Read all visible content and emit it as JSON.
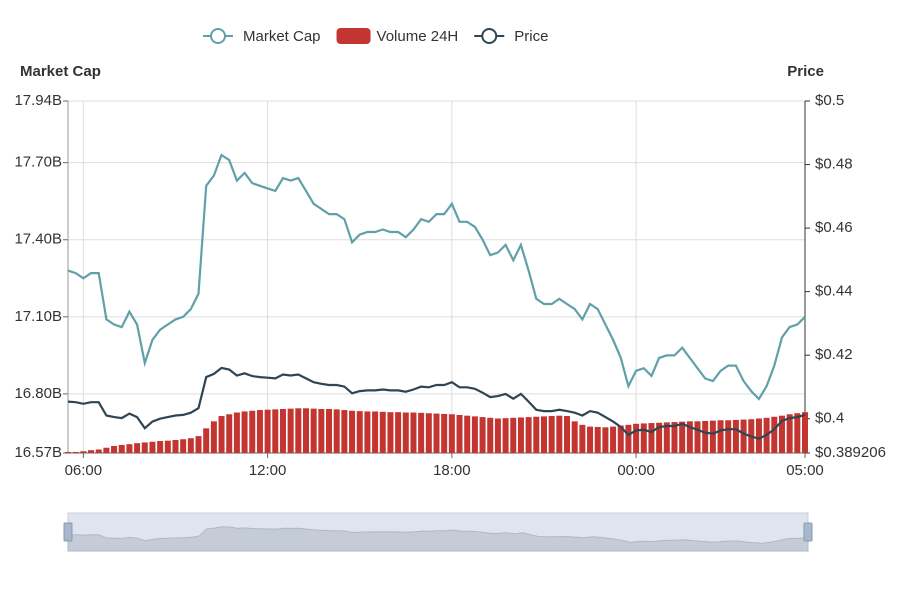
{
  "chart_data": {
    "type": "line",
    "y_label": "Market Cap",
    "y2_label": "Price",
    "legend": "top",
    "grid": true,
    "categories": [
      null,
      null,
      "06:00",
      null,
      null,
      null,
      null,
      null,
      null,
      null,
      null,
      null,
      null,
      null,
      null,
      null,
      null,
      null,
      null,
      null,
      null,
      null,
      null,
      null,
      null,
      null,
      "12:00",
      null,
      null,
      null,
      null,
      null,
      null,
      null,
      null,
      null,
      null,
      null,
      null,
      null,
      null,
      null,
      null,
      null,
      null,
      null,
      null,
      null,
      null,
      null,
      "18:00",
      null,
      null,
      null,
      null,
      null,
      null,
      null,
      null,
      null,
      null,
      null,
      null,
      null,
      null,
      null,
      null,
      null,
      null,
      null,
      null,
      null,
      null,
      null,
      "00:00",
      null,
      null,
      null,
      null,
      null,
      null,
      null,
      null,
      null,
      null,
      null,
      null,
      null,
      null,
      null,
      null,
      null,
      null,
      null,
      null,
      null,
      "05:00"
    ],
    "series": [
      {
        "name": "Market Cap",
        "type": "line",
        "axis": "y",
        "color": "#61a0a8",
        "values": [
          17.28,
          17.27,
          17.25,
          17.27,
          17.27,
          17.09,
          17.07,
          17.06,
          17.12,
          17.07,
          16.92,
          17.01,
          17.05,
          17.07,
          17.09,
          17.1,
          17.13,
          17.19,
          17.61,
          17.65,
          17.73,
          17.71,
          17.63,
          17.66,
          17.62,
          17.61,
          17.6,
          17.59,
          17.64,
          17.63,
          17.64,
          17.59,
          17.54,
          17.52,
          17.5,
          17.5,
          17.48,
          17.39,
          17.42,
          17.43,
          17.43,
          17.44,
          17.43,
          17.43,
          17.41,
          17.44,
          17.48,
          17.47,
          17.5,
          17.5,
          17.54,
          17.47,
          17.47,
          17.45,
          17.4,
          17.34,
          17.35,
          17.38,
          17.32,
          17.38,
          17.28,
          17.17,
          17.15,
          17.15,
          17.17,
          17.15,
          17.13,
          17.09,
          17.15,
          17.13,
          17.07,
          17.01,
          16.94,
          16.83,
          16.89,
          16.9,
          16.87,
          16.94,
          16.95,
          16.95,
          16.98,
          16.94,
          16.9,
          16.86,
          16.85,
          16.89,
          16.91,
          16.91,
          16.85,
          16.81,
          16.78,
          16.83,
          16.91,
          17.02,
          17.06,
          17.07,
          17.1
        ]
      },
      {
        "name": "Volume 24H",
        "type": "bar",
        "axis": "y3",
        "color": "#c23531",
        "values": [
          0.3,
          0.3,
          0.5,
          0.8,
          1,
          1.5,
          2,
          2.3,
          2.5,
          2.8,
          3,
          3.2,
          3.4,
          3.5,
          3.7,
          3.9,
          4.2,
          4.8,
          7,
          9,
          10.5,
          11,
          11.5,
          11.8,
          12,
          12.2,
          12.3,
          12.4,
          12.5,
          12.6,
          12.7,
          12.7,
          12.6,
          12.5,
          12.5,
          12.4,
          12.2,
          12,
          11.9,
          11.8,
          11.8,
          11.7,
          11.6,
          11.6,
          11.5,
          11.5,
          11.4,
          11.3,
          11.2,
          11.1,
          11,
          10.8,
          10.6,
          10.4,
          10.2,
          10,
          9.8,
          9.9,
          10,
          10.1,
          10.2,
          10.3,
          10.4,
          10.5,
          10.6,
          10.5,
          9,
          8,
          7.5,
          7.4,
          7.3,
          7.5,
          7.8,
          8,
          8.3,
          8.4,
          8.5,
          8.6,
          8.7,
          8.8,
          8.9,
          9,
          9,
          9.1,
          9.2,
          9.3,
          9.3,
          9.4,
          9.5,
          9.6,
          9.8,
          10,
          10.3,
          10.6,
          11,
          11.3,
          11.6
        ]
      },
      {
        "name": "Price",
        "type": "line",
        "axis": "y2",
        "color": "#2f4554",
        "values": [
          0.4054,
          0.4052,
          0.4047,
          0.4052,
          0.4052,
          0.401,
          0.4005,
          0.4002,
          0.4016,
          0.4005,
          0.397,
          0.3991,
          0.4,
          0.4005,
          0.401,
          0.4012,
          0.4019,
          0.4033,
          0.4131,
          0.4141,
          0.416,
          0.4155,
          0.4136,
          0.4143,
          0.4134,
          0.4131,
          0.4129,
          0.4127,
          0.4139,
          0.4136,
          0.4139,
          0.4127,
          0.4115,
          0.411,
          0.4106,
          0.4106,
          0.4101,
          0.408,
          0.4087,
          0.4089,
          0.4089,
          0.4092,
          0.4089,
          0.4089,
          0.4085,
          0.4092,
          0.4101,
          0.4099,
          0.4106,
          0.4106,
          0.4115,
          0.4099,
          0.4099,
          0.4094,
          0.4082,
          0.4068,
          0.4071,
          0.4078,
          0.4063,
          0.4078,
          0.4054,
          0.4028,
          0.4024,
          0.4024,
          0.4028,
          0.4024,
          0.4019,
          0.401,
          0.4024,
          0.4019,
          0.4005,
          0.3991,
          0.3974,
          0.3949,
          0.3963,
          0.3965,
          0.3958,
          0.3974,
          0.3977,
          0.3977,
          0.3984,
          0.3974,
          0.3965,
          0.3956,
          0.3953,
          0.3963,
          0.3967,
          0.3967,
          0.3953,
          0.3944,
          0.3937,
          0.3949,
          0.3967,
          0.3993,
          0.4002,
          0.4005,
          0.4012
        ]
      }
    ],
    "ylim": [
      16.57,
      17.94
    ],
    "yticks": [
      {
        "value": 16.57,
        "label": "16.57B"
      },
      {
        "value": 16.8,
        "label": "16.80B"
      },
      {
        "value": 17.1,
        "label": "17.10B"
      },
      {
        "value": 17.4,
        "label": "17.40B"
      },
      {
        "value": 17.7,
        "label": "17.70B"
      },
      {
        "value": 17.94,
        "label": "17.94B"
      }
    ],
    "y2lim": [
      0.389206,
      0.5
    ],
    "y2ticks": [
      {
        "value": 0.389206,
        "label": "$0.389206"
      },
      {
        "value": 0.4,
        "label": "$0.4"
      },
      {
        "value": 0.42,
        "label": "$0.42"
      },
      {
        "value": 0.44,
        "label": "$0.44"
      },
      {
        "value": 0.46,
        "label": "$0.46"
      },
      {
        "value": 0.48,
        "label": "$0.48"
      },
      {
        "value": 0.5,
        "label": "$0.5"
      }
    ],
    "y3lim": [
      0,
      100
    ]
  }
}
